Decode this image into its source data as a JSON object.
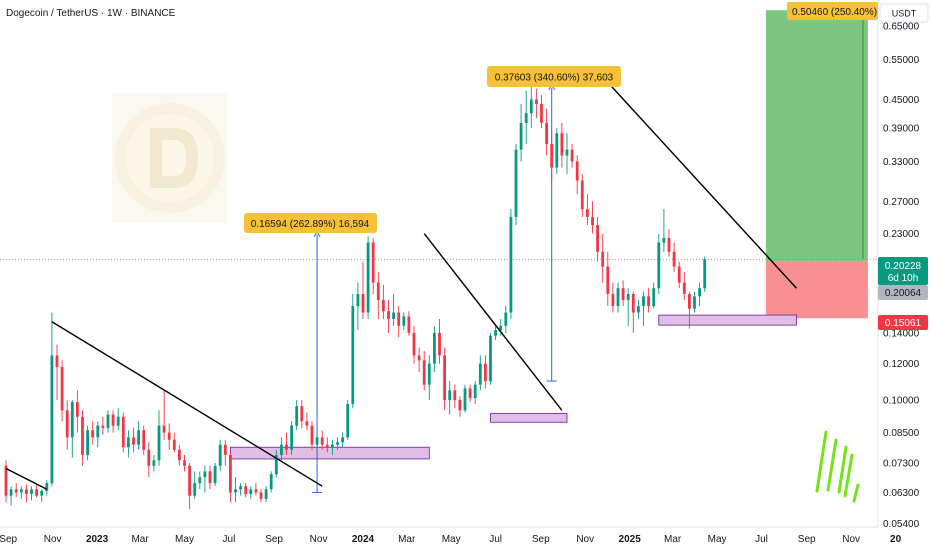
{
  "header": {
    "title": "Dogecoin / TetherUS · 1W · BINANCE"
  },
  "price_axis": {
    "currency_label": "USDT",
    "current_price": "0.20228",
    "countdown": "6d 10h",
    "marker_mid": "0.20064",
    "marker_stop": "0.15061",
    "marker_target": "0.50460 (250.40%)"
  },
  "annotations": {
    "move_2023": "0.16594 (262.89%) 16,594",
    "move_2024": "0.37603 (340.60%) 37,603"
  },
  "colors": {
    "up": "#26a69a",
    "up_fill": "#089981",
    "down": "#f23645",
    "trendline": "#000000",
    "support_zone": "#e1bee7",
    "support_border": "#6a1b9a",
    "target_zone": "#66bb6a",
    "stop_zone": "#f77c80",
    "label_bg": "#f7c137",
    "arrow": "#2962ff",
    "current_price_bg": "#26a69a",
    "stop_label_bg": "#f23645"
  },
  "chart_data": {
    "type": "candlestick",
    "y_scale": "log",
    "ylim": [
      0.053,
      0.74
    ],
    "y_ticks": [
      "0.65000",
      "0.55000",
      "0.45000",
      "0.39000",
      "0.33000",
      "0.27000",
      "0.23000",
      "0.14000",
      "0.12000",
      "0.10000",
      "0.08500",
      "0.07300",
      "0.06300",
      "0.05400"
    ],
    "x_tick_labels": [
      "Sep",
      "Nov",
      "2023",
      "Mar",
      "May",
      "Jul",
      "Sep",
      "Nov",
      "2024",
      "Mar",
      "May",
      "Jul",
      "Sep",
      "Nov",
      "2025",
      "Mar",
      "May",
      "Jul",
      "Sep",
      "Nov",
      "20"
    ],
    "trendlines": [
      {
        "from": [
          "2022-08-29",
          0.071
        ],
        "to": [
          "2022-10-24",
          0.064
        ]
      },
      {
        "from": [
          "2022-10-31",
          0.148
        ],
        "to": [
          "2023-11-06",
          0.065
        ]
      },
      {
        "from": [
          "2024-03-25",
          0.23
        ],
        "to": [
          "2024-09-30",
          0.095
        ]
      },
      {
        "from": [
          "2024-12-02",
          0.49
        ],
        "to": [
          "2025-08-18",
          0.175
        ]
      }
    ],
    "support_zones": [
      {
        "from": "2023-07-03",
        "to": "2024-04-01",
        "low": 0.0745,
        "high": 0.079
      },
      {
        "from": "2024-06-24",
        "to": "2024-10-07",
        "low": 0.0895,
        "high": 0.0935
      },
      {
        "from": "2025-02-10",
        "to": "2025-08-18",
        "low": 0.1455,
        "high": 0.153
      }
    ],
    "measured_moves": [
      {
        "x": "2023-10-30",
        "from": 0.063,
        "to": 0.232,
        "label_key": "move_2023"
      },
      {
        "x": "2024-09-16",
        "from": 0.11,
        "to": 0.484,
        "label_key": "move_2024"
      }
    ],
    "position": {
      "from": "2025-07-07",
      "to": "2025-11-24",
      "entry": 0.2006,
      "stop": 0.1506,
      "target": 0.7031
    },
    "candles": [
      [
        0.072,
        0.074,
        0.06,
        0.062
      ],
      [
        0.062,
        0.065,
        0.059,
        0.064
      ],
      [
        0.064,
        0.066,
        0.0615,
        0.063
      ],
      [
        0.063,
        0.065,
        0.061,
        0.064
      ],
      [
        0.064,
        0.0655,
        0.06,
        0.0625
      ],
      [
        0.0625,
        0.065,
        0.0605,
        0.064
      ],
      [
        0.064,
        0.066,
        0.0615,
        0.062
      ],
      [
        0.062,
        0.064,
        0.06,
        0.0635
      ],
      [
        0.0635,
        0.067,
        0.062,
        0.066
      ],
      [
        0.066,
        0.155,
        0.065,
        0.125
      ],
      [
        0.125,
        0.132,
        0.1,
        0.118
      ],
      [
        0.118,
        0.122,
        0.09,
        0.095
      ],
      [
        0.095,
        0.1,
        0.078,
        0.083
      ],
      [
        0.083,
        0.1,
        0.075,
        0.099
      ],
      [
        0.099,
        0.105,
        0.085,
        0.092
      ],
      [
        0.092,
        0.095,
        0.072,
        0.076
      ],
      [
        0.076,
        0.088,
        0.074,
        0.086
      ],
      [
        0.086,
        0.09,
        0.08,
        0.083
      ],
      [
        0.083,
        0.09,
        0.079,
        0.088
      ],
      [
        0.088,
        0.092,
        0.084,
        0.087
      ],
      [
        0.087,
        0.095,
        0.085,
        0.093
      ],
      [
        0.093,
        0.095,
        0.085,
        0.088
      ],
      [
        0.088,
        0.096,
        0.086,
        0.092
      ],
      [
        0.092,
        0.094,
        0.077,
        0.079
      ],
      [
        0.079,
        0.086,
        0.075,
        0.083
      ],
      [
        0.083,
        0.087,
        0.077,
        0.08
      ],
      [
        0.08,
        0.09,
        0.078,
        0.086
      ],
      [
        0.086,
        0.088,
        0.076,
        0.078
      ],
      [
        0.078,
        0.081,
        0.068,
        0.072
      ],
      [
        0.072,
        0.076,
        0.07,
        0.074
      ],
      [
        0.074,
        0.095,
        0.072,
        0.088
      ],
      [
        0.088,
        0.105,
        0.082,
        0.085
      ],
      [
        0.085,
        0.089,
        0.078,
        0.082
      ],
      [
        0.082,
        0.085,
        0.077,
        0.078
      ],
      [
        0.078,
        0.08,
        0.072,
        0.074
      ],
      [
        0.074,
        0.076,
        0.07,
        0.072
      ],
      [
        0.072,
        0.073,
        0.058,
        0.062
      ],
      [
        0.062,
        0.07,
        0.061,
        0.066
      ],
      [
        0.066,
        0.07,
        0.064,
        0.068
      ],
      [
        0.068,
        0.072,
        0.063,
        0.07
      ],
      [
        0.07,
        0.072,
        0.064,
        0.066
      ],
      [
        0.066,
        0.073,
        0.065,
        0.072
      ],
      [
        0.072,
        0.082,
        0.07,
        0.08
      ],
      [
        0.08,
        0.082,
        0.072,
        0.076
      ],
      [
        0.076,
        0.077,
        0.06,
        0.063
      ],
      [
        0.063,
        0.068,
        0.06,
        0.064
      ],
      [
        0.064,
        0.066,
        0.062,
        0.065
      ],
      [
        0.065,
        0.066,
        0.0615,
        0.0625
      ],
      [
        0.0625,
        0.065,
        0.061,
        0.064
      ],
      [
        0.064,
        0.066,
        0.062,
        0.063
      ],
      [
        0.063,
        0.064,
        0.06,
        0.061
      ],
      [
        0.061,
        0.065,
        0.06,
        0.064
      ],
      [
        0.064,
        0.07,
        0.063,
        0.069
      ],
      [
        0.069,
        0.078,
        0.068,
        0.076
      ],
      [
        0.076,
        0.083,
        0.074,
        0.08
      ],
      [
        0.08,
        0.085,
        0.076,
        0.078
      ],
      [
        0.078,
        0.09,
        0.076,
        0.088
      ],
      [
        0.088,
        0.1,
        0.086,
        0.097
      ],
      [
        0.097,
        0.1,
        0.087,
        0.09
      ],
      [
        0.09,
        0.094,
        0.086,
        0.088
      ],
      [
        0.088,
        0.09,
        0.078,
        0.08
      ],
      [
        0.08,
        0.085,
        0.076,
        0.083
      ],
      [
        0.083,
        0.086,
        0.078,
        0.08
      ],
      [
        0.08,
        0.083,
        0.077,
        0.079
      ],
      [
        0.079,
        0.082,
        0.076,
        0.08
      ],
      [
        0.08,
        0.083,
        0.078,
        0.081
      ],
      [
        0.081,
        0.085,
        0.079,
        0.083
      ],
      [
        0.083,
        0.1,
        0.082,
        0.098
      ],
      [
        0.098,
        0.17,
        0.096,
        0.16
      ],
      [
        0.16,
        0.18,
        0.142,
        0.17
      ],
      [
        0.17,
        0.2,
        0.15,
        0.155
      ],
      [
        0.155,
        0.227,
        0.15,
        0.22
      ],
      [
        0.22,
        0.225,
        0.17,
        0.18
      ],
      [
        0.18,
        0.19,
        0.15,
        0.165
      ],
      [
        0.165,
        0.178,
        0.15,
        0.156
      ],
      [
        0.156,
        0.165,
        0.14,
        0.15
      ],
      [
        0.15,
        0.17,
        0.145,
        0.155
      ],
      [
        0.155,
        0.16,
        0.137,
        0.145
      ],
      [
        0.145,
        0.155,
        0.142,
        0.152
      ],
      [
        0.152,
        0.156,
        0.138,
        0.14
      ],
      [
        0.14,
        0.145,
        0.12,
        0.125
      ],
      [
        0.125,
        0.13,
        0.115,
        0.122
      ],
      [
        0.122,
        0.128,
        0.105,
        0.108
      ],
      [
        0.108,
        0.125,
        0.1,
        0.12
      ],
      [
        0.12,
        0.145,
        0.115,
        0.14
      ],
      [
        0.14,
        0.15,
        0.12,
        0.125
      ],
      [
        0.125,
        0.13,
        0.095,
        0.1
      ],
      [
        0.1,
        0.11,
        0.093,
        0.105
      ],
      [
        0.105,
        0.108,
        0.096,
        0.1
      ],
      [
        0.1,
        0.102,
        0.092,
        0.095
      ],
      [
        0.095,
        0.108,
        0.094,
        0.106
      ],
      [
        0.106,
        0.108,
        0.099,
        0.101
      ],
      [
        0.101,
        0.11,
        0.098,
        0.108
      ],
      [
        0.108,
        0.125,
        0.105,
        0.12
      ],
      [
        0.12,
        0.125,
        0.106,
        0.11
      ],
      [
        0.11,
        0.14,
        0.108,
        0.138
      ],
      [
        0.138,
        0.145,
        0.135,
        0.142
      ],
      [
        0.142,
        0.15,
        0.138,
        0.145
      ],
      [
        0.145,
        0.16,
        0.14,
        0.155
      ],
      [
        0.155,
        0.26,
        0.15,
        0.25
      ],
      [
        0.25,
        0.36,
        0.24,
        0.35
      ],
      [
        0.35,
        0.44,
        0.33,
        0.4
      ],
      [
        0.4,
        0.47,
        0.36,
        0.42
      ],
      [
        0.42,
        0.48,
        0.39,
        0.45
      ],
      [
        0.45,
        0.475,
        0.41,
        0.44
      ],
      [
        0.44,
        0.46,
        0.39,
        0.4
      ],
      [
        0.4,
        0.43,
        0.34,
        0.36
      ],
      [
        0.36,
        0.38,
        0.3,
        0.32
      ],
      [
        0.32,
        0.39,
        0.31,
        0.38
      ],
      [
        0.38,
        0.4,
        0.32,
        0.34
      ],
      [
        0.34,
        0.38,
        0.31,
        0.35
      ],
      [
        0.35,
        0.36,
        0.32,
        0.33
      ],
      [
        0.33,
        0.34,
        0.28,
        0.3
      ],
      [
        0.3,
        0.31,
        0.25,
        0.26
      ],
      [
        0.26,
        0.28,
        0.24,
        0.25
      ],
      [
        0.25,
        0.27,
        0.23,
        0.24
      ],
      [
        0.24,
        0.25,
        0.2,
        0.21
      ],
      [
        0.21,
        0.23,
        0.18,
        0.195
      ],
      [
        0.195,
        0.21,
        0.16,
        0.17
      ],
      [
        0.17,
        0.18,
        0.155,
        0.16
      ],
      [
        0.16,
        0.18,
        0.155,
        0.175
      ],
      [
        0.175,
        0.182,
        0.16,
        0.165
      ],
      [
        0.165,
        0.175,
        0.145,
        0.17
      ],
      [
        0.17,
        0.172,
        0.14,
        0.155
      ],
      [
        0.155,
        0.165,
        0.15,
        0.16
      ],
      [
        0.16,
        0.172,
        0.145,
        0.168
      ],
      [
        0.168,
        0.175,
        0.155,
        0.16
      ],
      [
        0.16,
        0.18,
        0.158,
        0.175
      ],
      [
        0.175,
        0.23,
        0.17,
        0.22
      ],
      [
        0.22,
        0.26,
        0.21,
        0.225
      ],
      [
        0.225,
        0.235,
        0.205,
        0.21
      ],
      [
        0.21,
        0.22,
        0.19,
        0.195
      ],
      [
        0.195,
        0.2,
        0.175,
        0.18
      ],
      [
        0.18,
        0.19,
        0.165,
        0.17
      ],
      [
        0.17,
        0.172,
        0.143,
        0.158
      ],
      [
        0.158,
        0.172,
        0.155,
        0.168
      ],
      [
        0.168,
        0.18,
        0.16,
        0.175
      ],
      [
        0.175,
        0.205,
        0.172,
        0.2023
      ]
    ]
  }
}
